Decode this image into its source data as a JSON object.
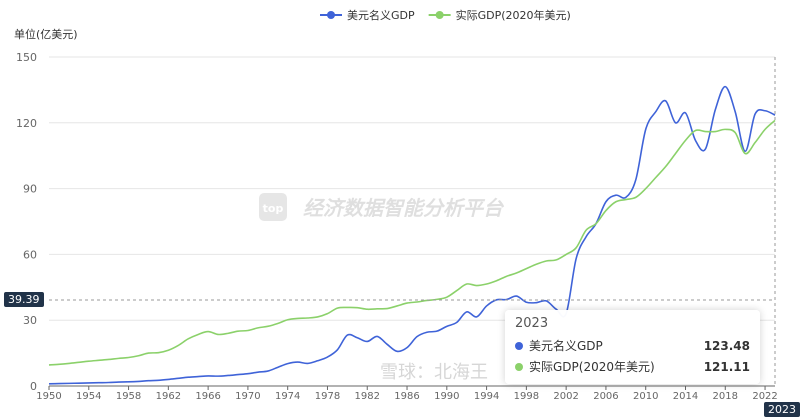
{
  "chart_data": {
    "type": "line",
    "ylabel": "单位(亿美元)",
    "ylim": [
      0,
      150
    ],
    "yticks": [
      0,
      30,
      60,
      90,
      120,
      150
    ],
    "xlim": [
      1950,
      2023
    ],
    "xticks": [
      1950,
      1954,
      1958,
      1962,
      1966,
      1970,
      1974,
      1978,
      1982,
      1986,
      1990,
      1994,
      1998,
      2002,
      2006,
      2010,
      2014,
      2018,
      2022
    ],
    "grid": true,
    "legend_position": "top",
    "x": [
      1950,
      1951,
      1952,
      1953,
      1954,
      1955,
      1956,
      1957,
      1958,
      1959,
      1960,
      1961,
      1962,
      1963,
      1964,
      1965,
      1966,
      1967,
      1968,
      1969,
      1970,
      1971,
      1972,
      1973,
      1974,
      1975,
      1976,
      1977,
      1978,
      1979,
      1980,
      1981,
      1982,
      1983,
      1984,
      1985,
      1986,
      1987,
      1988,
      1989,
      1990,
      1991,
      1992,
      1993,
      1994,
      1995,
      1996,
      1997,
      1998,
      1999,
      2000,
      2001,
      2002,
      2003,
      2004,
      2005,
      2006,
      2007,
      2008,
      2009,
      2010,
      2011,
      2012,
      2013,
      2014,
      2015,
      2016,
      2017,
      2018,
      2019,
      2020,
      2021,
      2022,
      2023
    ],
    "series": [
      {
        "name": "美元名义GDP",
        "color": "#3f63d8",
        "values": [
          1.0,
          1.1,
          1.2,
          1.3,
          1.4,
          1.5,
          1.6,
          1.8,
          1.9,
          2.1,
          2.4,
          2.6,
          3.0,
          3.5,
          4.0,
          4.3,
          4.6,
          4.5,
          4.8,
          5.2,
          5.6,
          6.3,
          6.8,
          8.5,
          10.2,
          10.9,
          10.3,
          11.5,
          13.2,
          16.5,
          23.2,
          22.0,
          20.3,
          22.6,
          19.0,
          15.8,
          17.5,
          22.5,
          24.5,
          25.0,
          27.2,
          29.0,
          33.8,
          31.5,
          36.5,
          39.3,
          39.4,
          41.0,
          38.2,
          38.0,
          38.8,
          35.0,
          33.0,
          58.0,
          68.0,
          74.0,
          84.0,
          87.0,
          86.0,
          94.0,
          117.0,
          125.0,
          130.0,
          120.0,
          124.5,
          112.0,
          108.0,
          126.0,
          136.5,
          125.0,
          107.0,
          124.0,
          125.5,
          123.48
        ]
      },
      {
        "name": "实际GDP(2020年美元)",
        "color": "#8bd16a",
        "values": [
          9.6,
          9.9,
          10.3,
          10.8,
          11.3,
          11.7,
          12.1,
          12.6,
          13.0,
          13.8,
          15.0,
          15.2,
          16.3,
          18.5,
          21.5,
          23.5,
          24.8,
          23.5,
          24.0,
          25.0,
          25.3,
          26.5,
          27.2,
          28.5,
          30.2,
          30.8,
          31.0,
          31.5,
          33.0,
          35.5,
          35.8,
          35.7,
          35.0,
          35.2,
          35.3,
          36.5,
          37.8,
          38.3,
          39.0,
          39.5,
          40.5,
          43.5,
          46.5,
          45.8,
          46.5,
          48.0,
          50.0,
          51.5,
          53.5,
          55.5,
          57.0,
          57.5,
          60.0,
          63.0,
          71.0,
          74.0,
          80.0,
          84.0,
          85.0,
          86.0,
          90.0,
          95.0,
          100.0,
          106.0,
          112.0,
          116.5,
          116.0,
          116.0,
          117.0,
          115.5,
          106.0,
          111.0,
          117.0,
          121.11
        ]
      }
    ],
    "crosshair": {
      "x": "2023",
      "y": "39.39"
    },
    "tooltip": {
      "title": "2023",
      "rows": [
        {
          "name": "美元名义GDP",
          "value": "123.48"
        },
        {
          "name": "实际GDP(2020年美元)",
          "value": "121.11"
        }
      ]
    },
    "watermarks": [
      "top",
      "经济数据智能分析平台",
      "雪球：北海王"
    ]
  }
}
